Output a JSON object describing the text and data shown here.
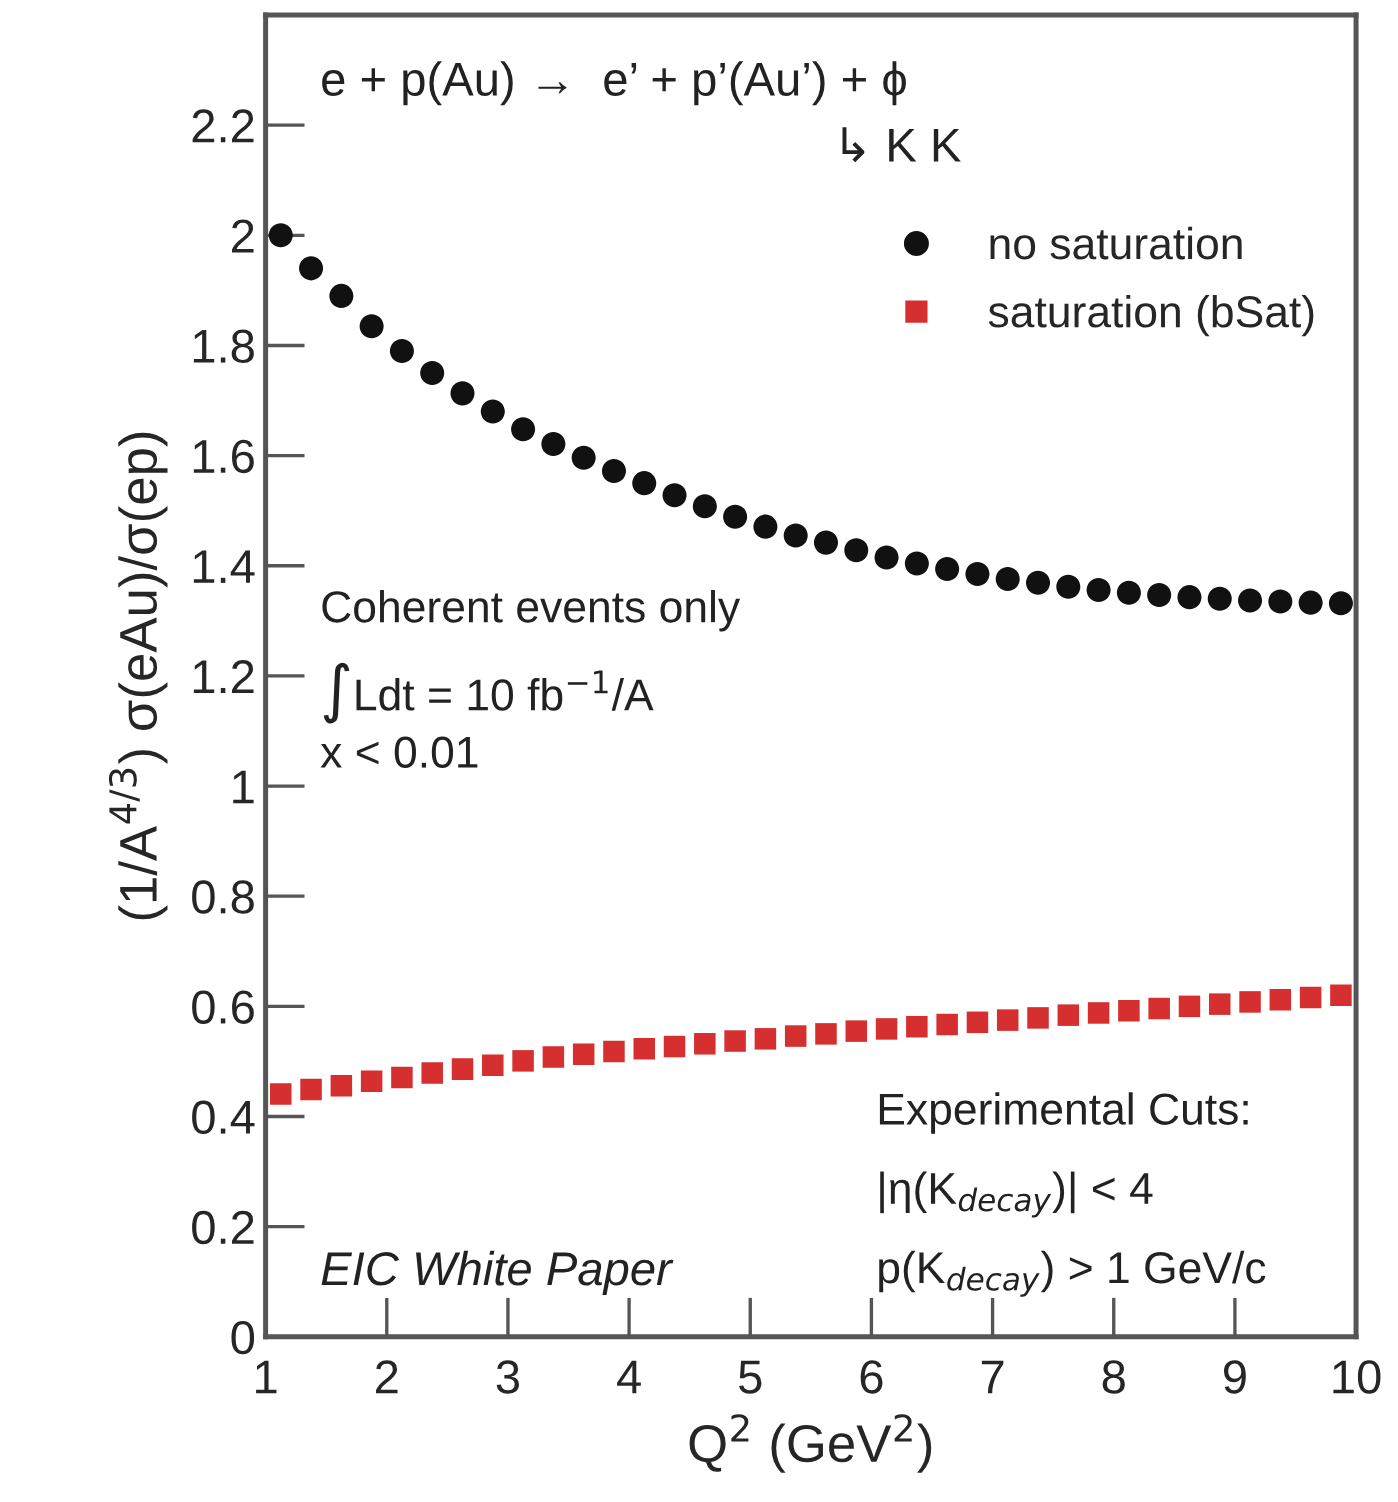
{
  "chart_data": {
    "type": "scatter",
    "xlabel": "Q$^{2}$ (GeV$^{2}$)",
    "ylabel": "(1/A$^{4/3}$) σ(eAu)/σ(ep)",
    "x": [
      1.125,
      1.375,
      1.625,
      1.875,
      2.125,
      2.375,
      2.625,
      2.875,
      3.125,
      3.375,
      3.625,
      3.875,
      4.125,
      4.375,
      4.625,
      4.875,
      5.125,
      5.375,
      5.625,
      5.875,
      6.125,
      6.375,
      6.625,
      6.875,
      7.125,
      7.375,
      7.625,
      7.875,
      8.125,
      8.375,
      8.625,
      8.875,
      9.125,
      9.375,
      9.625,
      9.875
    ],
    "series": [
      {
        "name": "no saturation",
        "color": "#111111",
        "marker": "circle",
        "values": [
          2.0,
          1.94,
          1.89,
          1.835,
          1.79,
          1.75,
          1.713,
          1.68,
          1.648,
          1.621,
          1.596,
          1.572,
          1.55,
          1.528,
          1.508,
          1.489,
          1.471,
          1.455,
          1.442,
          1.428,
          1.415,
          1.404,
          1.394,
          1.385,
          1.376,
          1.369,
          1.362,
          1.356,
          1.351,
          1.347,
          1.343,
          1.34,
          1.337,
          1.335,
          1.333,
          1.332
        ]
      },
      {
        "name": "saturation (bSat)",
        "color": "#d62f2f",
        "marker": "square",
        "values": [
          0.441,
          0.449,
          0.456,
          0.464,
          0.471,
          0.479,
          0.486,
          0.493,
          0.501,
          0.508,
          0.513,
          0.518,
          0.523,
          0.527,
          0.532,
          0.537,
          0.541,
          0.546,
          0.55,
          0.555,
          0.559,
          0.563,
          0.567,
          0.571,
          0.575,
          0.579,
          0.584,
          0.588,
          0.592,
          0.596,
          0.6,
          0.604,
          0.608,
          0.612,
          0.616,
          0.62
        ]
      }
    ],
    "xlim": [
      1,
      10
    ],
    "ylim": [
      0,
      2.4
    ],
    "xticks": [
      1,
      2,
      3,
      4,
      5,
      6,
      7,
      8,
      9,
      10
    ],
    "yticks": [
      0,
      0.2,
      0.4,
      0.6,
      0.8,
      1,
      1.2,
      1.4,
      1.6,
      1.8,
      2,
      2.2
    ],
    "grid": false,
    "legend": "top right",
    "annotations": [
      "e + p(Au) →  e’ + p’(Au’) + ϕ",
      "↳ K K",
      "Coherent events only",
      "∫Ldt = 10 fb$^{−1}$/A",
      "x < 0.01",
      "Experimental Cuts:",
      "|η(K$_{decay}$)| < 4",
      "p(K$_{decay}$) > 1 GeV/c",
      "EIC White Paper"
    ]
  }
}
